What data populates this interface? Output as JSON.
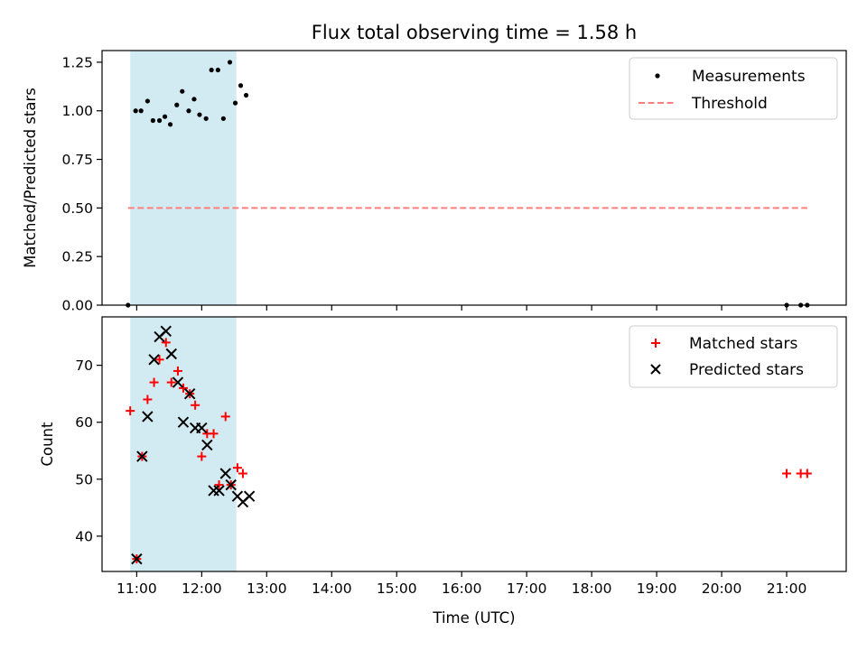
{
  "chart_data": [
    {
      "type": "scatter",
      "title": "Flux total observing time = 1.58 h",
      "ylabel": "Matched/Predicted stars",
      "xlim": [
        "10:28",
        "21:55"
      ],
      "ylim": [
        0,
        1.31
      ],
      "yticks": [
        "0.00",
        "0.25",
        "0.50",
        "0.75",
        "1.00",
        "1.25"
      ],
      "highlight_span": {
        "x": [
          "10:54",
          "12:32"
        ],
        "color": "#add8e6"
      },
      "legend_position": "top-right",
      "series": [
        {
          "name": "Measurements",
          "marker": "dot",
          "color": "#000000",
          "points": [
            [
              "10:52",
              0.0
            ],
            [
              "10:59",
              1.0
            ],
            [
              "11:04",
              1.0
            ],
            [
              "11:10",
              1.05
            ],
            [
              "11:15",
              0.95
            ],
            [
              "11:21",
              0.95
            ],
            [
              "11:26",
              0.97
            ],
            [
              "11:31",
              0.93
            ],
            [
              "11:37",
              1.03
            ],
            [
              "11:42",
              1.1
            ],
            [
              "11:48",
              1.0
            ],
            [
              "11:53",
              1.06
            ],
            [
              "11:58",
              0.98
            ],
            [
              "12:04",
              0.96
            ],
            [
              "12:09",
              1.21
            ],
            [
              "12:15",
              1.21
            ],
            [
              "12:20",
              0.96
            ],
            [
              "12:26",
              1.25
            ],
            [
              "12:31",
              1.04
            ],
            [
              "12:36",
              1.13
            ],
            [
              "12:41",
              1.08
            ],
            [
              "21:00",
              0.0
            ],
            [
              "21:13",
              0.0
            ],
            [
              "21:19",
              0.0
            ]
          ]
        },
        {
          "name": "Threshold",
          "marker": "dashed-line",
          "color": "#ff7f7f",
          "points": [
            [
              "10:52",
              0.5
            ],
            [
              "21:19",
              0.5
            ]
          ]
        }
      ]
    },
    {
      "type": "scatter",
      "xlabel": "Time (UTC)",
      "ylabel": "Count",
      "xlim": [
        "10:28",
        "21:55"
      ],
      "ylim": [
        33.8,
        78.5
      ],
      "xticks": [
        "11:00",
        "12:00",
        "13:00",
        "14:00",
        "15:00",
        "16:00",
        "17:00",
        "18:00",
        "19:00",
        "20:00",
        "21:00"
      ],
      "yticks": [
        "40",
        "50",
        "60",
        "70"
      ],
      "highlight_span": {
        "x": [
          "10:54",
          "12:32"
        ],
        "color": "#add8e6"
      },
      "legend_position": "top-right",
      "series": [
        {
          "name": "Matched stars",
          "marker": "plus",
          "color": "#ff0000",
          "points": [
            [
              "10:54",
              62
            ],
            [
              "11:00",
              36
            ],
            [
              "11:05",
              54
            ],
            [
              "11:10",
              64
            ],
            [
              "11:16",
              67
            ],
            [
              "11:21",
              71
            ],
            [
              "11:27",
              74
            ],
            [
              "11:32",
              67
            ],
            [
              "11:38",
              69
            ],
            [
              "11:43",
              66
            ],
            [
              "11:49",
              65
            ],
            [
              "11:54",
              63
            ],
            [
              "12:00",
              54
            ],
            [
              "12:05",
              58
            ],
            [
              "12:11",
              58
            ],
            [
              "12:16",
              49
            ],
            [
              "12:22",
              61
            ],
            [
              "12:27",
              49
            ],
            [
              "12:33",
              52
            ],
            [
              "12:38",
              51
            ],
            [
              "21:00",
              51
            ],
            [
              "21:13",
              51
            ],
            [
              "21:19",
              51
            ]
          ]
        },
        {
          "name": "Predicted stars",
          "marker": "x",
          "color": "#000000",
          "points": [
            [
              "11:00",
              36
            ],
            [
              "11:05",
              54
            ],
            [
              "11:10",
              61
            ],
            [
              "11:16",
              71
            ],
            [
              "11:21",
              75
            ],
            [
              "11:27",
              76
            ],
            [
              "11:32",
              72
            ],
            [
              "11:38",
              67
            ],
            [
              "11:43",
              60
            ],
            [
              "11:49",
              65
            ],
            [
              "11:54",
              59
            ],
            [
              "12:00",
              59
            ],
            [
              "12:05",
              56
            ],
            [
              "12:11",
              48
            ],
            [
              "12:16",
              48
            ],
            [
              "12:22",
              51
            ],
            [
              "12:27",
              49
            ],
            [
              "12:33",
              47
            ],
            [
              "12:38",
              46
            ],
            [
              "12:44",
              47
            ]
          ]
        }
      ]
    }
  ]
}
